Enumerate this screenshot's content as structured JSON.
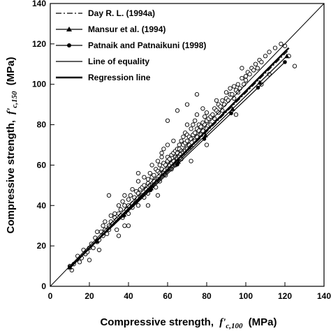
{
  "chart_data": {
    "type": "scatter",
    "xlabel_main": "Compressive strength,",
    "xlabel_symbol": "f'",
    "xlabel_sub": "c,100",
    "xlabel_unit": "(MPa)",
    "ylabel_main": "Compressive strength,",
    "ylabel_symbol": "f'",
    "ylabel_sub": "c,150",
    "ylabel_unit": "(MPa)",
    "xlim": [
      0,
      140
    ],
    "ylim": [
      0,
      140
    ],
    "x_ticks": [
      "0",
      "20",
      "40",
      "60",
      "80",
      "100",
      "120",
      "140"
    ],
    "y_ticks": [
      "0",
      "20",
      "40",
      "60",
      "80",
      "100",
      "120",
      "140"
    ],
    "legend_position": "top-left",
    "legend": [
      {
        "label": "Day R. L. (1994a)",
        "style": "dash-dot"
      },
      {
        "label": "Mansur et al. (1994)",
        "style": "line-triangle"
      },
      {
        "label": "Patnaik and Patnaikuni (1998)",
        "style": "line-circle"
      },
      {
        "label": "Line of equality",
        "style": "thin-line"
      },
      {
        "label": "Regression line",
        "style": "thick-line"
      }
    ],
    "series": [
      {
        "name": "Line of equality",
        "x": [
          0,
          140
        ],
        "y": [
          0,
          140
        ]
      },
      {
        "name": "Regression line",
        "x": [
          10,
          122
        ],
        "y": [
          9.2,
          118
        ]
      },
      {
        "name": "Day R. L. (1994a)",
        "x": [
          10,
          122
        ],
        "y": [
          9.0,
          117
        ]
      },
      {
        "name": "Mansur et al. (1994)",
        "x": [
          10,
          121
        ],
        "y": [
          9.4,
          114
        ]
      },
      {
        "name": "Patnaik and Patnaikuni (1998)",
        "x": [
          10,
          120
        ],
        "y": [
          9.6,
          111
        ]
      }
    ],
    "scatter_points": [
      [
        10,
        10
      ],
      [
        11,
        8
      ],
      [
        12,
        11
      ],
      [
        14,
        15
      ],
      [
        15,
        12
      ],
      [
        16,
        14
      ],
      [
        17,
        18
      ],
      [
        18,
        16
      ],
      [
        19,
        17
      ],
      [
        20,
        19
      ],
      [
        21,
        21
      ],
      [
        22,
        19
      ],
      [
        23,
        24
      ],
      [
        24,
        22
      ],
      [
        24,
        27
      ],
      [
        25,
        23
      ],
      [
        26,
        27
      ],
      [
        27,
        25
      ],
      [
        27,
        30
      ],
      [
        28,
        28
      ],
      [
        28,
        32
      ],
      [
        29,
        26
      ],
      [
        30,
        30
      ],
      [
        30,
        28
      ],
      [
        31,
        35
      ],
      [
        31,
        32
      ],
      [
        32,
        31
      ],
      [
        33,
        34
      ],
      [
        33,
        36
      ],
      [
        34,
        33
      ],
      [
        34,
        28
      ],
      [
        35,
        36
      ],
      [
        35,
        40
      ],
      [
        36,
        35
      ],
      [
        36,
        38
      ],
      [
        37,
        34
      ],
      [
        37,
        42
      ],
      [
        38,
        40
      ],
      [
        38,
        45
      ],
      [
        38,
        30
      ],
      [
        39,
        38
      ],
      [
        40,
        43
      ],
      [
        40,
        40
      ],
      [
        40,
        36
      ],
      [
        41,
        45
      ],
      [
        42,
        41
      ],
      [
        42,
        39
      ],
      [
        42,
        48
      ],
      [
        43,
        44
      ],
      [
        44,
        42
      ],
      [
        44,
        47
      ],
      [
        45,
        46
      ],
      [
        45,
        52
      ],
      [
        45,
        40
      ],
      [
        46,
        44
      ],
      [
        46,
        48
      ],
      [
        47,
        49
      ],
      [
        47,
        45
      ],
      [
        48,
        50
      ],
      [
        48,
        54
      ],
      [
        48,
        44
      ],
      [
        49,
        48
      ],
      [
        50,
        53
      ],
      [
        50,
        51
      ],
      [
        50,
        46
      ],
      [
        51,
        50
      ],
      [
        51,
        56
      ],
      [
        52,
        54
      ],
      [
        52,
        60
      ],
      [
        52,
        50
      ],
      [
        53,
        55
      ],
      [
        53,
        52
      ],
      [
        54,
        58
      ],
      [
        54,
        49
      ],
      [
        55,
        57
      ],
      [
        55,
        53
      ],
      [
        55,
        62
      ],
      [
        56,
        56
      ],
      [
        56,
        60
      ],
      [
        56,
        52
      ],
      [
        57,
        58
      ],
      [
        57,
        64
      ],
      [
        57,
        66
      ],
      [
        58,
        56
      ],
      [
        58,
        61
      ],
      [
        58,
        68
      ],
      [
        59,
        60
      ],
      [
        59,
        55
      ],
      [
        60,
        62
      ],
      [
        60,
        58
      ],
      [
        60,
        64
      ],
      [
        60,
        70
      ],
      [
        61,
        63
      ],
      [
        61,
        60
      ],
      [
        62,
        65
      ],
      [
        62,
        61
      ],
      [
        62,
        58
      ],
      [
        63,
        66
      ],
      [
        63,
        62
      ],
      [
        63,
        72
      ],
      [
        64,
        64
      ],
      [
        64,
        67
      ],
      [
        64,
        60
      ],
      [
        65,
        68
      ],
      [
        65,
        63
      ],
      [
        65,
        66
      ],
      [
        66,
        70
      ],
      [
        66,
        64
      ],
      [
        66,
        68
      ],
      [
        67,
        67
      ],
      [
        67,
        72
      ],
      [
        67,
        63
      ],
      [
        68,
        70
      ],
      [
        68,
        66
      ],
      [
        68,
        74
      ],
      [
        69,
        71
      ],
      [
        69,
        67
      ],
      [
        69,
        76
      ],
      [
        70,
        72
      ],
      [
        70,
        68
      ],
      [
        70,
        75
      ],
      [
        70,
        80
      ],
      [
        71,
        74
      ],
      [
        71,
        70
      ],
      [
        72,
        73
      ],
      [
        72,
        78
      ],
      [
        72,
        69
      ],
      [
        73,
        75
      ],
      [
        73,
        80
      ],
      [
        74,
        76
      ],
      [
        74,
        72
      ],
      [
        74,
        82
      ],
      [
        75,
        78
      ],
      [
        75,
        74
      ],
      [
        75,
        85
      ],
      [
        76,
        77
      ],
      [
        76,
        80
      ],
      [
        77,
        79
      ],
      [
        77,
        75
      ],
      [
        78,
        81
      ],
      [
        78,
        77
      ],
      [
        78,
        88
      ],
      [
        79,
        80
      ],
      [
        79,
        84
      ],
      [
        80,
        82
      ],
      [
        80,
        78
      ],
      [
        80,
        86
      ],
      [
        81,
        83
      ],
      [
        82,
        84
      ],
      [
        82,
        80
      ],
      [
        83,
        85
      ],
      [
        84,
        88
      ],
      [
        84,
        83
      ],
      [
        85,
        87
      ],
      [
        85,
        92
      ],
      [
        86,
        86
      ],
      [
        86,
        90
      ],
      [
        87,
        89
      ],
      [
        88,
        92
      ],
      [
        88,
        87
      ],
      [
        89,
        90
      ],
      [
        90,
        93
      ],
      [
        90,
        96
      ],
      [
        91,
        92
      ],
      [
        92,
        95
      ],
      [
        92,
        98
      ],
      [
        93,
        95
      ],
      [
        94,
        99
      ],
      [
        94,
        93
      ],
      [
        95,
        97
      ],
      [
        96,
        100
      ],
      [
        96,
        96
      ],
      [
        97,
        98
      ],
      [
        98,
        103
      ],
      [
        98,
        108
      ],
      [
        99,
        100
      ],
      [
        100,
        104
      ],
      [
        100,
        102
      ],
      [
        101,
        106
      ],
      [
        102,
        105
      ],
      [
        103,
        108
      ],
      [
        104,
        107
      ],
      [
        105,
        110
      ],
      [
        106,
        108
      ],
      [
        107,
        112
      ],
      [
        108,
        111
      ],
      [
        110,
        114
      ],
      [
        112,
        116
      ],
      [
        115,
        118
      ],
      [
        118,
        120
      ],
      [
        120,
        119
      ],
      [
        122,
        114
      ],
      [
        125,
        109
      ],
      [
        108,
        100
      ],
      [
        112,
        105
      ],
      [
        30,
        45
      ],
      [
        60,
        82
      ],
      [
        65,
        87
      ],
      [
        70,
        90
      ],
      [
        75,
        95
      ],
      [
        55,
        45
      ],
      [
        50,
        40
      ],
      [
        72,
        62
      ],
      [
        80,
        70
      ],
      [
        95,
        85
      ],
      [
        45,
        56
      ],
      [
        40,
        30
      ],
      [
        25,
        18
      ],
      [
        20,
        13
      ],
      [
        35,
        25
      ]
    ]
  }
}
